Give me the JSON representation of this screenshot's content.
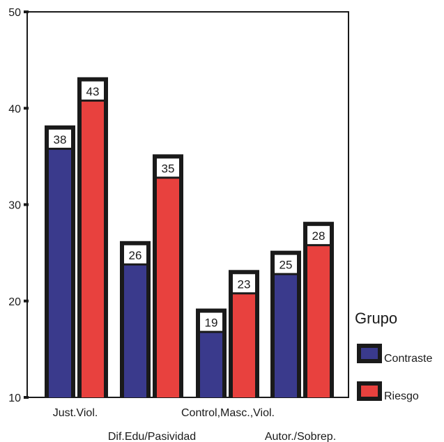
{
  "chart_data": {
    "type": "bar",
    "categories": [
      "Just.Viol.",
      "Dif.Edu/Pasividad",
      "Control,Masc.,Viol.",
      "Autor./Sobrep."
    ],
    "series": [
      {
        "name": "Contraste",
        "values": [
          38,
          26,
          19,
          25
        ],
        "color": "#3a3a8c"
      },
      {
        "name": "Riesgo",
        "values": [
          43,
          35,
          23,
          28
        ],
        "color": "#e8413e"
      }
    ],
    "value_labels": [
      [
        "38",
        "26",
        "19",
        "25"
      ],
      [
        "43",
        "35",
        "23",
        "28"
      ]
    ],
    "ylim": [
      10,
      50
    ],
    "yticks": [
      10,
      20,
      30,
      40,
      50
    ],
    "title": "",
    "xlabel": "",
    "ylabel": "",
    "legend": {
      "title": "Grupo",
      "position": "right"
    },
    "grid": false
  }
}
